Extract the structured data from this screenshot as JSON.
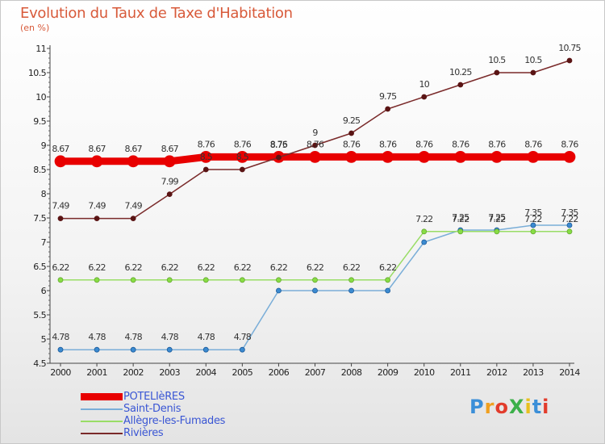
{
  "title": "Evolution du Taux de Taxe d'Habitation",
  "subtitle": "(en %)",
  "logo": {
    "text": "ProXiti",
    "colors": [
      "#3b8fd8",
      "#f0a020",
      "#e23c2c",
      "#3cb04a",
      "#e8c020",
      "#3b8fd8",
      "#e23c2c"
    ]
  },
  "chart_data": {
    "type": "line",
    "x": [
      2000,
      2001,
      2002,
      2003,
      2004,
      2005,
      2006,
      2007,
      2008,
      2009,
      2010,
      2011,
      2012,
      2013,
      2014
    ],
    "ylim": [
      4.5,
      11
    ],
    "yticks": [
      4.5,
      5,
      5.5,
      6,
      6.5,
      7,
      7.5,
      8,
      8.5,
      9,
      9.5,
      10,
      10.5,
      11
    ],
    "ytick_labels": [
      "4.5",
      "5",
      "5.5",
      "6",
      "6.5",
      "7",
      "7.5",
      "8",
      "8.5",
      "9",
      "9.5",
      "10",
      "10.5",
      "11"
    ],
    "grid": false,
    "legend_position": "bottom-left",
    "series": [
      {
        "name": "POTELIèRES",
        "color": "#e80000",
        "values": [
          8.67,
          8.67,
          8.67,
          8.67,
          8.76,
          8.76,
          8.76,
          8.76,
          8.76,
          8.76,
          8.76,
          8.76,
          8.76,
          8.76,
          8.76
        ],
        "labels": [
          "8.67",
          "8.67",
          "8.67",
          "8.67",
          "8.76",
          "8.76",
          "8.76",
          "8.76",
          "8.76",
          "8.76",
          "8.76",
          "8.76",
          "8.76",
          "8.76",
          "8.76"
        ]
      },
      {
        "name": "Saint-Denis",
        "color": "#6ea6d6",
        "values": [
          4.78,
          4.78,
          4.78,
          4.78,
          4.78,
          4.78,
          6,
          6,
          6,
          6,
          7,
          7.25,
          7.25,
          7.35,
          7.35
        ],
        "labels": [
          "4.78",
          "4.78",
          "4.78",
          "4.78",
          "4.78",
          "4.78",
          "",
          "",
          "",
          "",
          "",
          "7.25",
          "7.25",
          "7.35",
          "7.35"
        ]
      },
      {
        "name": "Allègre-les-Fumades",
        "color": "#99dd66",
        "values": [
          6.22,
          6.22,
          6.22,
          6.22,
          6.22,
          6.22,
          6.22,
          6.22,
          6.22,
          6.22,
          7.22,
          7.22,
          7.22,
          7.22,
          7.22
        ],
        "labels": [
          "6.22",
          "6.22",
          "6.22",
          "6.22",
          "6.22",
          "6.22",
          "6.22",
          "6.22",
          "6.22",
          "6.22",
          "7.22",
          "7.22",
          "7.22",
          "7.22",
          "7.22"
        ]
      },
      {
        "name": "Rivières",
        "color": "#7a2a2a",
        "values": [
          7.49,
          7.49,
          7.49,
          7.99,
          8.5,
          8.5,
          8.75,
          9,
          9.25,
          9.75,
          10,
          10.25,
          10.5,
          10.5,
          10.75
        ],
        "labels": [
          "7.49",
          "7.49",
          "7.49",
          "7.99",
          "8.5",
          "8.5",
          "8.75",
          "9",
          "9.25",
          "9.75",
          "10",
          "10.25",
          "10.5",
          "10.5",
          "10.75"
        ]
      }
    ]
  }
}
